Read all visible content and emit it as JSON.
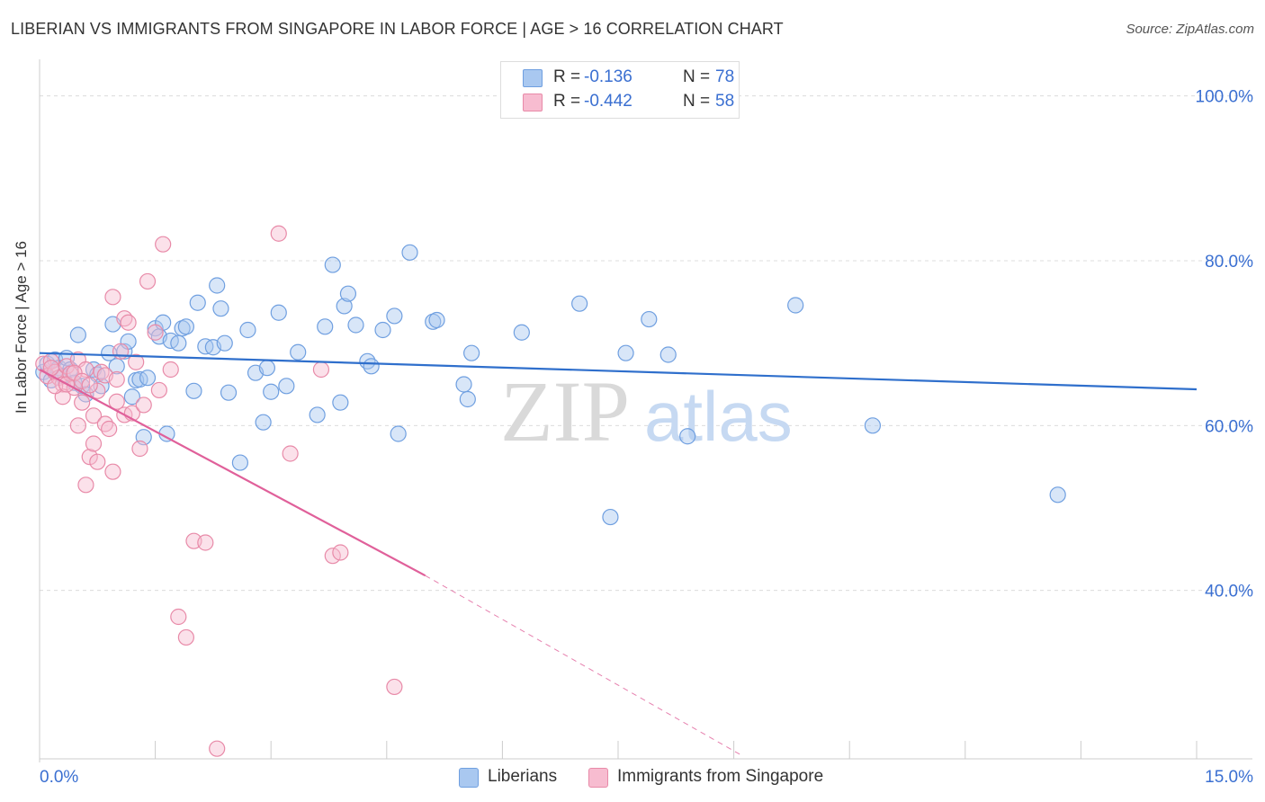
{
  "title": "LIBERIAN VS IMMIGRANTS FROM SINGAPORE IN LABOR FORCE | AGE > 16 CORRELATION CHART",
  "source": "Source: ZipAtlas.com",
  "watermark": {
    "zip": "ZIP",
    "atlas": "atlas"
  },
  "legend": {
    "r_label": "R =",
    "n_label": "N =",
    "rows": [
      {
        "name": "Liberians",
        "r": "-0.136",
        "n": "78",
        "color": "#a9c8f0",
        "stroke": "#6f9fe0"
      },
      {
        "name": "Immigrants from Singapore",
        "r": "-0.442",
        "n": "58",
        "color": "#f7bcd0",
        "stroke": "#e88aa8"
      }
    ]
  },
  "bottom_legend": {
    "liberians": "Liberians",
    "singapore": "Immigrants from Singapore"
  },
  "chart_data": {
    "type": "scatter",
    "title": "LIBERIAN VS IMMIGRANTS FROM SINGAPORE IN LABOR FORCE | AGE > 16 CORRELATION CHART",
    "xlabel": "",
    "ylabel": "In Labor Force | Age > 16",
    "xlim": [
      0,
      15
    ],
    "ylim": [
      20,
      104
    ],
    "x_tick_labels": [
      {
        "value": 0,
        "label": "0.0%"
      },
      {
        "value": 15,
        "label": "15.0%"
      }
    ],
    "y_tick_labels": [
      {
        "value": 100,
        "label": "100.0%"
      },
      {
        "value": 80,
        "label": "80.0%"
      },
      {
        "value": 60,
        "label": "60.0%"
      },
      {
        "value": 40,
        "label": "40.0%"
      }
    ],
    "y_gridlines": [
      100,
      80,
      60,
      40
    ],
    "series": [
      {
        "name": "Liberians",
        "color": "#6f9fe0",
        "fill": "#a9c8f0",
        "trend": {
          "x": [
            0,
            15
          ],
          "y": [
            68.8,
            64.4
          ],
          "color": "#2f6fcc"
        },
        "points": [
          [
            0.05,
            66.5
          ],
          [
            0.1,
            67.5
          ],
          [
            0.15,
            65.5
          ],
          [
            0.2,
            68.0
          ],
          [
            0.25,
            67.0
          ],
          [
            0.3,
            66.0
          ],
          [
            0.35,
            68.2
          ],
          [
            0.4,
            66.8
          ],
          [
            0.45,
            65.2
          ],
          [
            0.5,
            71.0
          ],
          [
            0.55,
            64.8
          ],
          [
            0.6,
            63.8
          ],
          [
            0.7,
            66.8
          ],
          [
            0.75,
            66.2
          ],
          [
            0.8,
            64.8
          ],
          [
            0.9,
            68.8
          ],
          [
            0.95,
            72.3
          ],
          [
            1.0,
            67.2
          ],
          [
            1.1,
            69.0
          ],
          [
            1.15,
            70.2
          ],
          [
            1.2,
            63.5
          ],
          [
            1.25,
            65.5
          ],
          [
            1.3,
            65.6
          ],
          [
            1.35,
            58.6
          ],
          [
            1.4,
            65.8
          ],
          [
            1.5,
            71.8
          ],
          [
            1.55,
            70.8
          ],
          [
            1.6,
            72.5
          ],
          [
            1.65,
            59.0
          ],
          [
            1.7,
            70.3
          ],
          [
            1.8,
            70.0
          ],
          [
            1.85,
            71.8
          ],
          [
            1.9,
            72.0
          ],
          [
            2.0,
            64.2
          ],
          [
            2.05,
            74.9
          ],
          [
            2.15,
            69.6
          ],
          [
            2.25,
            69.5
          ],
          [
            2.3,
            77.0
          ],
          [
            2.35,
            74.2
          ],
          [
            2.4,
            70.0
          ],
          [
            2.45,
            64.0
          ],
          [
            2.6,
            55.5
          ],
          [
            2.7,
            71.6
          ],
          [
            2.8,
            66.4
          ],
          [
            2.9,
            60.4
          ],
          [
            2.95,
            67.0
          ],
          [
            3.0,
            64.1
          ],
          [
            3.1,
            73.7
          ],
          [
            3.2,
            64.8
          ],
          [
            3.35,
            68.9
          ],
          [
            3.6,
            61.3
          ],
          [
            3.7,
            72.0
          ],
          [
            3.8,
            79.5
          ],
          [
            3.9,
            62.8
          ],
          [
            3.95,
            74.5
          ],
          [
            4.0,
            76.0
          ],
          [
            4.1,
            72.2
          ],
          [
            4.25,
            67.8
          ],
          [
            4.3,
            67.2
          ],
          [
            4.45,
            71.6
          ],
          [
            4.6,
            73.3
          ],
          [
            4.65,
            59.0
          ],
          [
            4.8,
            81.0
          ],
          [
            5.1,
            72.6
          ],
          [
            5.15,
            72.8
          ],
          [
            5.5,
            65.0
          ],
          [
            5.55,
            63.2
          ],
          [
            5.6,
            68.8
          ],
          [
            6.25,
            71.3
          ],
          [
            7.0,
            74.8
          ],
          [
            7.4,
            48.9
          ],
          [
            7.6,
            68.8
          ],
          [
            7.9,
            72.9
          ],
          [
            8.15,
            68.6
          ],
          [
            8.4,
            58.7
          ],
          [
            9.8,
            74.6
          ],
          [
            10.8,
            60.0
          ],
          [
            13.2,
            51.6
          ]
        ]
      },
      {
        "name": "Immigrants from Singapore",
        "color": "#e88aa8",
        "fill": "#f7bcd0",
        "trend": {
          "x": [
            0,
            5.0
          ],
          "y": [
            66.8,
            41.8
          ],
          "dashed_extension": {
            "x": [
              5.0,
              9.1
            ],
            "y": [
              41.8,
              20.0
            ]
          },
          "color": "#e0609a"
        },
        "points": [
          [
            0.05,
            67.5
          ],
          [
            0.1,
            66.0
          ],
          [
            0.15,
            67.8
          ],
          [
            0.2,
            66.5
          ],
          [
            0.25,
            65.8
          ],
          [
            0.3,
            65.0
          ],
          [
            0.3,
            63.5
          ],
          [
            0.35,
            67.2
          ],
          [
            0.4,
            66.3
          ],
          [
            0.45,
            64.6
          ],
          [
            0.5,
            68.0
          ],
          [
            0.5,
            60.0
          ],
          [
            0.55,
            62.8
          ],
          [
            0.6,
            66.8
          ],
          [
            0.6,
            52.8
          ],
          [
            0.65,
            56.2
          ],
          [
            0.7,
            61.2
          ],
          [
            0.7,
            57.8
          ],
          [
            0.75,
            64.2
          ],
          [
            0.75,
            55.6
          ],
          [
            0.8,
            66.5
          ],
          [
            0.85,
            60.2
          ],
          [
            0.9,
            59.6
          ],
          [
            0.95,
            75.6
          ],
          [
            0.95,
            54.4
          ],
          [
            1.0,
            62.9
          ],
          [
            1.05,
            69.0
          ],
          [
            1.1,
            73.0
          ],
          [
            1.1,
            61.3
          ],
          [
            1.15,
            72.5
          ],
          [
            1.2,
            61.5
          ],
          [
            1.25,
            67.7
          ],
          [
            1.3,
            57.2
          ],
          [
            1.35,
            62.5
          ],
          [
            1.4,
            77.5
          ],
          [
            1.5,
            71.3
          ],
          [
            1.55,
            64.3
          ],
          [
            1.6,
            82.0
          ],
          [
            1.7,
            66.8
          ],
          [
            1.8,
            36.8
          ],
          [
            1.9,
            34.3
          ],
          [
            2.0,
            46.0
          ],
          [
            2.15,
            45.8
          ],
          [
            2.3,
            20.8
          ],
          [
            3.1,
            83.3
          ],
          [
            3.25,
            56.6
          ],
          [
            3.65,
            66.8
          ],
          [
            3.8,
            44.2
          ],
          [
            3.9,
            44.6
          ],
          [
            4.6,
            28.3
          ],
          [
            0.15,
            67.0
          ],
          [
            0.2,
            64.8
          ],
          [
            0.35,
            65.0
          ],
          [
            0.45,
            66.4
          ],
          [
            0.55,
            65.4
          ],
          [
            0.65,
            64.9
          ],
          [
            0.85,
            66.1
          ],
          [
            1.0,
            65.6
          ]
        ]
      }
    ]
  }
}
